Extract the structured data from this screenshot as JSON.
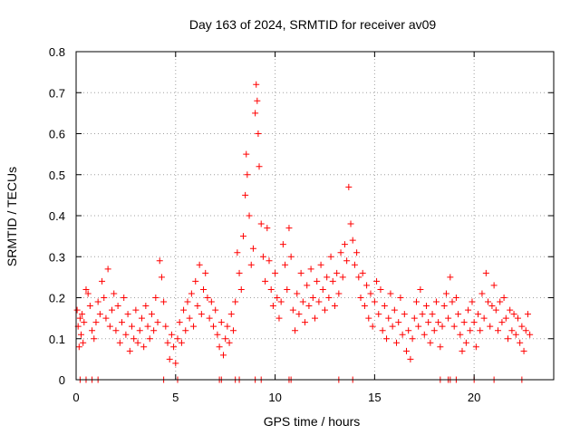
{
  "chart_data": {
    "type": "scatter",
    "title": "Day 163 of 2024, SRMTID for receiver av09",
    "xlabel": "GPS time / hours",
    "ylabel": "SRMTID / TECUs",
    "xlim": [
      0,
      24
    ],
    "ylim": [
      0,
      0.8
    ],
    "xticks": [
      "0",
      "5",
      "10",
      "15",
      "20"
    ],
    "yticks": [
      "0",
      "0.1",
      "0.2",
      "0.3",
      "0.4",
      "0.5",
      "0.6",
      "0.7",
      "0.8"
    ],
    "grid": true,
    "marker": "+",
    "color": "#ff0000",
    "series": [
      {
        "name": "SRMTID",
        "points": [
          [
            0.05,
            0.17
          ],
          [
            0.1,
            0.13
          ],
          [
            0.15,
            0.08
          ],
          [
            0.2,
            0.15
          ],
          [
            0.25,
            0.11
          ],
          [
            0.3,
            0.16
          ],
          [
            0.35,
            0.09
          ],
          [
            0.4,
            0.14
          ],
          [
            0.5,
            0.22
          ],
          [
            0.6,
            0.21
          ],
          [
            0.7,
            0.18
          ],
          [
            0.8,
            0.12
          ],
          [
            0.9,
            0.1
          ],
          [
            1.0,
            0.14
          ],
          [
            1.1,
            0.19
          ],
          [
            1.2,
            0.16
          ],
          [
            1.3,
            0.24
          ],
          [
            1.4,
            0.2
          ],
          [
            1.5,
            0.15
          ],
          [
            1.6,
            0.27
          ],
          [
            1.7,
            0.13
          ],
          [
            1.8,
            0.17
          ],
          [
            1.9,
            0.21
          ],
          [
            2.0,
            0.12
          ],
          [
            2.1,
            0.18
          ],
          [
            2.2,
            0.09
          ],
          [
            2.3,
            0.14
          ],
          [
            2.4,
            0.2
          ],
          [
            2.5,
            0.11
          ],
          [
            2.6,
            0.16
          ],
          [
            2.7,
            0.07
          ],
          [
            2.8,
            0.13
          ],
          [
            2.9,
            0.1
          ],
          [
            3.0,
            0.17
          ],
          [
            3.1,
            0.09
          ],
          [
            3.2,
            0.12
          ],
          [
            3.3,
            0.15
          ],
          [
            3.4,
            0.08
          ],
          [
            3.5,
            0.18
          ],
          [
            3.6,
            0.13
          ],
          [
            3.7,
            0.1
          ],
          [
            3.8,
            0.16
          ],
          [
            3.9,
            0.12
          ],
          [
            4.0,
            0.2
          ],
          [
            4.1,
            0.14
          ],
          [
            4.2,
            0.29
          ],
          [
            4.3,
            0.25
          ],
          [
            4.4,
            0.19
          ],
          [
            4.5,
            0.13
          ],
          [
            4.6,
            0.09
          ],
          [
            4.7,
            0.05
          ],
          [
            4.8,
            0.11
          ],
          [
            4.9,
            0.08
          ],
          [
            5.0,
            0.04
          ],
          [
            5.1,
            0.1
          ],
          [
            5.2,
            0.14
          ],
          [
            5.3,
            0.09
          ],
          [
            5.4,
            0.17
          ],
          [
            5.5,
            0.12
          ],
          [
            5.6,
            0.19
          ],
          [
            5.7,
            0.15
          ],
          [
            5.8,
            0.21
          ],
          [
            5.9,
            0.13
          ],
          [
            6.0,
            0.24
          ],
          [
            6.1,
            0.18
          ],
          [
            6.2,
            0.28
          ],
          [
            6.3,
            0.16
          ],
          [
            6.4,
            0.22
          ],
          [
            6.5,
            0.26
          ],
          [
            6.6,
            0.2
          ],
          [
            6.7,
            0.15
          ],
          [
            6.8,
            0.19
          ],
          [
            6.9,
            0.13
          ],
          [
            7.0,
            0.17
          ],
          [
            7.1,
            0.11
          ],
          [
            7.2,
            0.08
          ],
          [
            7.3,
            0.14
          ],
          [
            7.4,
            0.06
          ],
          [
            7.5,
            0.1
          ],
          [
            7.6,
            0.13
          ],
          [
            7.7,
            0.09
          ],
          [
            7.8,
            0.16
          ],
          [
            7.9,
            0.12
          ],
          [
            8.0,
            0.19
          ],
          [
            8.1,
            0.31
          ],
          [
            8.2,
            0.26
          ],
          [
            8.3,
            0.22
          ],
          [
            8.4,
            0.35
          ],
          [
            8.5,
            0.45
          ],
          [
            8.55,
            0.55
          ],
          [
            8.6,
            0.5
          ],
          [
            8.7,
            0.4
          ],
          [
            8.8,
            0.28
          ],
          [
            8.9,
            0.32
          ],
          [
            9.0,
            0.65
          ],
          [
            9.05,
            0.72
          ],
          [
            9.1,
            0.68
          ],
          [
            9.15,
            0.6
          ],
          [
            9.2,
            0.52
          ],
          [
            9.3,
            0.38
          ],
          [
            9.4,
            0.3
          ],
          [
            9.5,
            0.24
          ],
          [
            9.6,
            0.37
          ],
          [
            9.7,
            0.29
          ],
          [
            9.8,
            0.22
          ],
          [
            9.9,
            0.18
          ],
          [
            10.0,
            0.26
          ],
          [
            10.1,
            0.2
          ],
          [
            10.2,
            0.15
          ],
          [
            10.3,
            0.19
          ],
          [
            10.4,
            0.33
          ],
          [
            10.5,
            0.28
          ],
          [
            10.6,
            0.22
          ],
          [
            10.7,
            0.37
          ],
          [
            10.8,
            0.3
          ],
          [
            10.9,
            0.17
          ],
          [
            11.0,
            0.12
          ],
          [
            11.1,
            0.21
          ],
          [
            11.2,
            0.16
          ],
          [
            11.3,
            0.26
          ],
          [
            11.4,
            0.19
          ],
          [
            11.5,
            0.14
          ],
          [
            11.6,
            0.23
          ],
          [
            11.7,
            0.18
          ],
          [
            11.8,
            0.27
          ],
          [
            11.9,
            0.2
          ],
          [
            12.0,
            0.15
          ],
          [
            12.1,
            0.24
          ],
          [
            12.2,
            0.19
          ],
          [
            12.3,
            0.28
          ],
          [
            12.4,
            0.22
          ],
          [
            12.5,
            0.17
          ],
          [
            12.6,
            0.25
          ],
          [
            12.7,
            0.2
          ],
          [
            12.8,
            0.3
          ],
          [
            12.9,
            0.24
          ],
          [
            13.0,
            0.18
          ],
          [
            13.1,
            0.26
          ],
          [
            13.2,
            0.21
          ],
          [
            13.3,
            0.31
          ],
          [
            13.4,
            0.25
          ],
          [
            13.5,
            0.33
          ],
          [
            13.6,
            0.29
          ],
          [
            13.7,
            0.47
          ],
          [
            13.8,
            0.38
          ],
          [
            13.9,
            0.34
          ],
          [
            14.0,
            0.28
          ],
          [
            14.1,
            0.31
          ],
          [
            14.2,
            0.25
          ],
          [
            14.3,
            0.2
          ],
          [
            14.4,
            0.26
          ],
          [
            14.5,
            0.18
          ],
          [
            14.6,
            0.23
          ],
          [
            14.7,
            0.15
          ],
          [
            14.8,
            0.21
          ],
          [
            14.9,
            0.13
          ],
          [
            15.0,
            0.19
          ],
          [
            15.1,
            0.24
          ],
          [
            15.2,
            0.16
          ],
          [
            15.3,
            0.22
          ],
          [
            15.4,
            0.12
          ],
          [
            15.5,
            0.18
          ],
          [
            15.6,
            0.1
          ],
          [
            15.7,
            0.15
          ],
          [
            15.8,
            0.21
          ],
          [
            15.9,
            0.13
          ],
          [
            16.0,
            0.17
          ],
          [
            16.1,
            0.09
          ],
          [
            16.2,
            0.14
          ],
          [
            16.3,
            0.2
          ],
          [
            16.4,
            0.11
          ],
          [
            16.5,
            0.16
          ],
          [
            16.6,
            0.07
          ],
          [
            16.7,
            0.12
          ],
          [
            16.8,
            0.05
          ],
          [
            16.9,
            0.1
          ],
          [
            17.0,
            0.15
          ],
          [
            17.1,
            0.19
          ],
          [
            17.2,
            0.13
          ],
          [
            17.3,
            0.22
          ],
          [
            17.4,
            0.16
          ],
          [
            17.5,
            0.11
          ],
          [
            17.6,
            0.18
          ],
          [
            17.7,
            0.14
          ],
          [
            17.8,
            0.09
          ],
          [
            17.9,
            0.16
          ],
          [
            18.0,
            0.12
          ],
          [
            18.1,
            0.19
          ],
          [
            18.2,
            0.14
          ],
          [
            18.3,
            0.08
          ],
          [
            18.4,
            0.13
          ],
          [
            18.5,
            0.18
          ],
          [
            18.6,
            0.21
          ],
          [
            18.7,
            0.15
          ],
          [
            18.8,
            0.25
          ],
          [
            18.9,
            0.19
          ],
          [
            19.0,
            0.13
          ],
          [
            19.1,
            0.2
          ],
          [
            19.2,
            0.16
          ],
          [
            19.3,
            0.11
          ],
          [
            19.4,
            0.07
          ],
          [
            19.5,
            0.14
          ],
          [
            19.6,
            0.09
          ],
          [
            19.7,
            0.17
          ],
          [
            19.8,
            0.12
          ],
          [
            19.9,
            0.19
          ],
          [
            20.0,
            0.14
          ],
          [
            20.1,
            0.08
          ],
          [
            20.2,
            0.16
          ],
          [
            20.3,
            0.12
          ],
          [
            20.4,
            0.21
          ],
          [
            20.5,
            0.15
          ],
          [
            20.6,
            0.26
          ],
          [
            20.7,
            0.19
          ],
          [
            20.8,
            0.13
          ],
          [
            20.9,
            0.18
          ],
          [
            21.0,
            0.23
          ],
          [
            21.1,
            0.17
          ],
          [
            21.2,
            0.12
          ],
          [
            21.3,
            0.19
          ],
          [
            21.4,
            0.14
          ],
          [
            21.5,
            0.2
          ],
          [
            21.6,
            0.15
          ],
          [
            21.7,
            0.1
          ],
          [
            21.8,
            0.17
          ],
          [
            21.9,
            0.12
          ],
          [
            22.0,
            0.16
          ],
          [
            22.1,
            0.11
          ],
          [
            22.2,
            0.15
          ],
          [
            22.3,
            0.09
          ],
          [
            22.4,
            0.13
          ],
          [
            22.5,
            0.07
          ],
          [
            22.6,
            0.12
          ],
          [
            22.7,
            0.16
          ],
          [
            22.8,
            0.11
          ]
        ]
      },
      {
        "name": "zero-markers",
        "points": [
          [
            0.2,
            0
          ],
          [
            0.5,
            0
          ],
          [
            0.8,
            0
          ],
          [
            1.1,
            0
          ],
          [
            4.4,
            0
          ],
          [
            5.1,
            0
          ],
          [
            7.2,
            0
          ],
          [
            7.3,
            0
          ],
          [
            8.0,
            0
          ],
          [
            8.2,
            0
          ],
          [
            9.0,
            0
          ],
          [
            9.3,
            0
          ],
          [
            10.7,
            0
          ],
          [
            10.8,
            0
          ],
          [
            13.2,
            0
          ],
          [
            13.9,
            0
          ],
          [
            18.3,
            0
          ],
          [
            18.7,
            0
          ],
          [
            18.8,
            0
          ],
          [
            19.1,
            0
          ],
          [
            20.0,
            0
          ],
          [
            21.0,
            0
          ],
          [
            22.4,
            0
          ]
        ]
      }
    ]
  }
}
